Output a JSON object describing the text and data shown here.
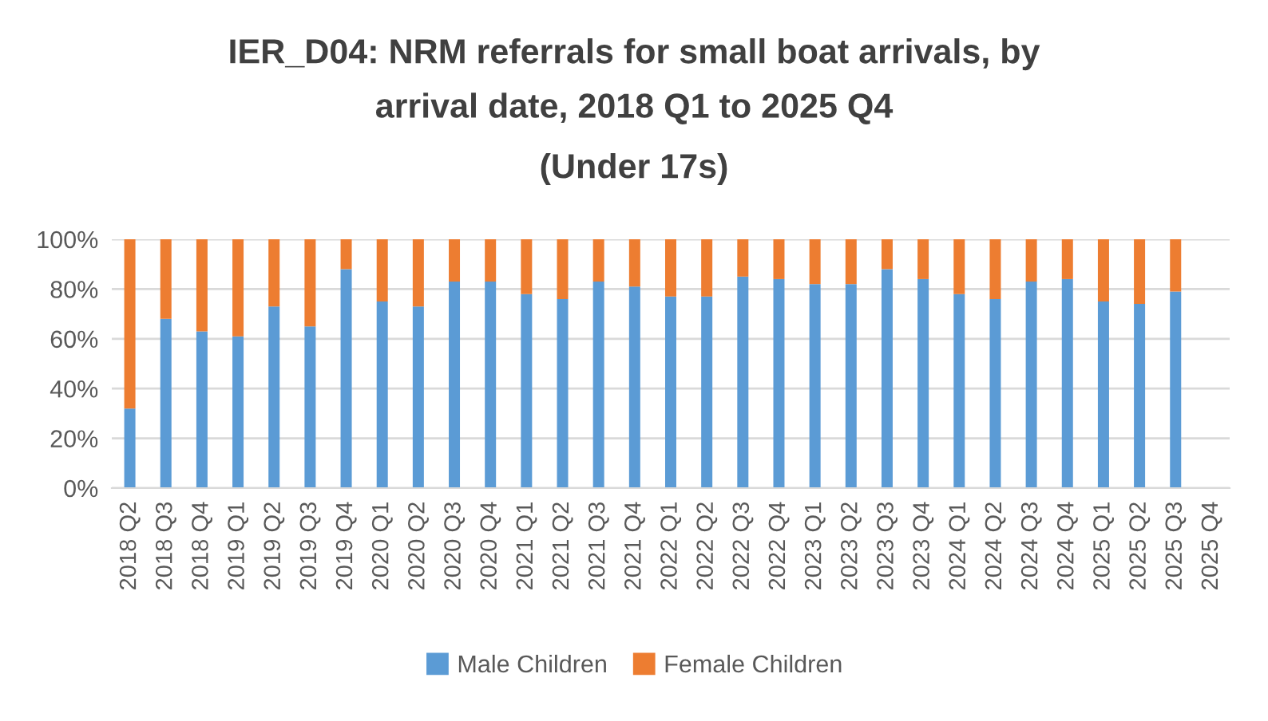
{
  "chart_data": {
    "type": "bar",
    "stacked": true,
    "title": "IER_D04: NRM referrals for small boat arrivals, by\narrival date, 2018 Q1 to 2025 Q4",
    "subtitle": "(Under 17s)",
    "categories": [
      "2018 Q2",
      "2018 Q3",
      "2018 Q4",
      "2019 Q1",
      "2019 Q2",
      "2019 Q3",
      "2019 Q4",
      "2020 Q1",
      "2020 Q2",
      "2020 Q3",
      "2020 Q4",
      "2021 Q1",
      "2021 Q2",
      "2021 Q3",
      "2021 Q4",
      "2022 Q1",
      "2022 Q2",
      "2022 Q3",
      "2022 Q4",
      "2023 Q1",
      "2023 Q2",
      "2023 Q3",
      "2023 Q4",
      "2024 Q1",
      "2024 Q2",
      "2024 Q3",
      "2024 Q4",
      "2025 Q1",
      "2025 Q2",
      "2025 Q3",
      "2025 Q4"
    ],
    "series": [
      {
        "name": "Male Children",
        "color": "#5b9bd5",
        "values": [
          32,
          68,
          63,
          61,
          73,
          65,
          88,
          75,
          73,
          83,
          83,
          78,
          76,
          83,
          81,
          77,
          77,
          85,
          84,
          82,
          82,
          88,
          84,
          78,
          76,
          83,
          84,
          75,
          74,
          79,
          null
        ]
      },
      {
        "name": "Female Children",
        "color": "#ed7d31",
        "values": [
          68,
          32,
          37,
          39,
          27,
          35,
          12,
          25,
          27,
          17,
          17,
          22,
          24,
          17,
          19,
          23,
          23,
          15,
          16,
          18,
          18,
          12,
          16,
          22,
          24,
          17,
          16,
          25,
          26,
          21,
          null
        ]
      }
    ],
    "ylim": [
      0,
      100
    ],
    "yticks": [
      {
        "value": 0,
        "label": "0%"
      },
      {
        "value": 20,
        "label": "20%"
      },
      {
        "value": 40,
        "label": "40%"
      },
      {
        "value": 60,
        "label": "60%"
      },
      {
        "value": 80,
        "label": "80%"
      },
      {
        "value": 100,
        "label": "100%"
      }
    ],
    "grid": "y",
    "legend": "bottom"
  }
}
